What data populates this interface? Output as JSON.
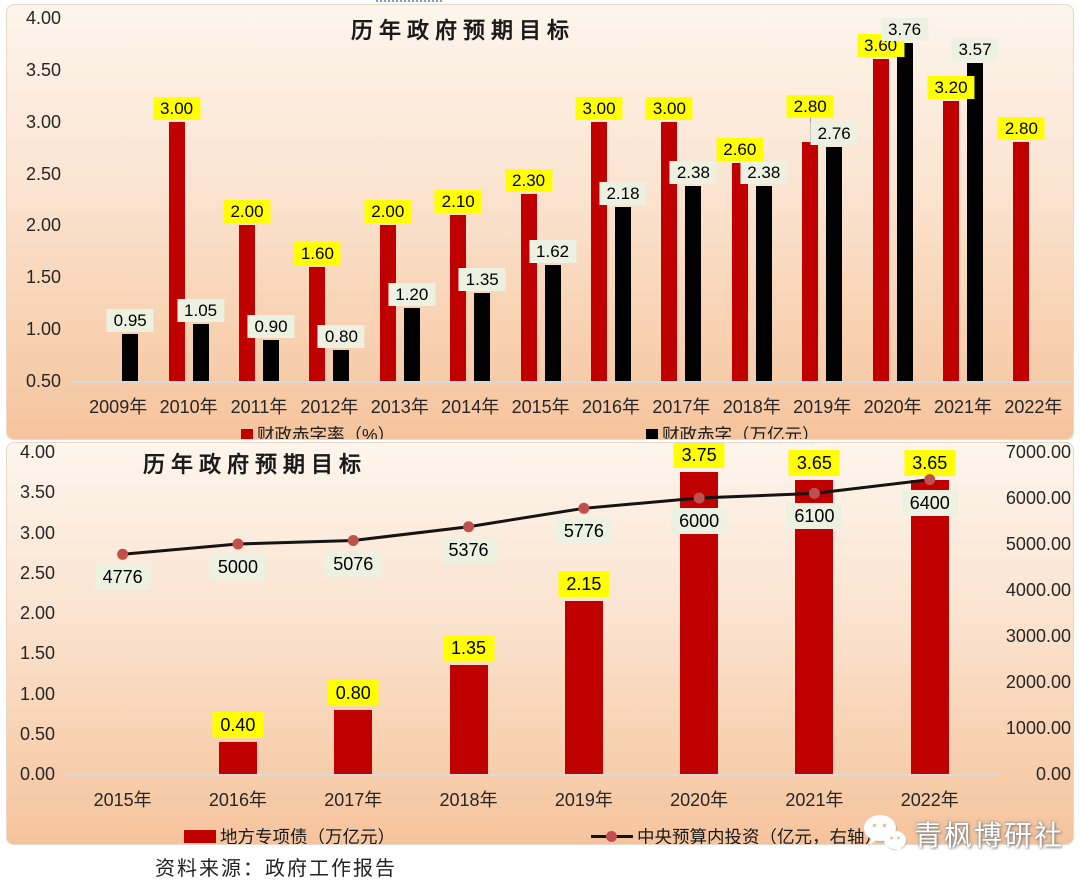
{
  "colors": {
    "bar_red": "#C00000",
    "bar_black": "#000000",
    "label_yellow": "#FFFF00",
    "label_cream": "#EDF1E1",
    "line": "#141414",
    "marker": "#C0504D",
    "panel_gradient_top": "#FDF5EC",
    "panel_gradient_bottom": "#F5C49D"
  },
  "source": {
    "text": "资料来源：政府工作报告"
  },
  "watermark": {
    "icon": "wechat-icon",
    "text": "青枫博研社"
  },
  "chart_data": [
    {
      "type": "bar",
      "title": "历年政府预期目标",
      "categories": [
        "2009年",
        "2010年",
        "2011年",
        "2012年",
        "2013年",
        "2014年",
        "2015年",
        "2016年",
        "2017年",
        "2018年",
        "2019年",
        "2020年",
        "2021年",
        "2022年"
      ],
      "series": [
        {
          "name": "财政赤字率（%）",
          "color": "#C00000",
          "label_bg": "#FFFF00",
          "values": [
            null,
            3.0,
            2.0,
            1.6,
            2.0,
            2.1,
            2.3,
            3.0,
            3.0,
            2.6,
            2.8,
            3.6,
            3.2,
            2.8
          ]
        },
        {
          "name": "财政赤字（万亿元）",
          "color": "#000000",
          "label_bg": "#EDF1E1",
          "values": [
            0.95,
            1.05,
            0.9,
            0.8,
            1.2,
            1.35,
            1.62,
            2.18,
            2.38,
            2.38,
            2.76,
            3.76,
            3.57,
            null
          ]
        }
      ],
      "y_axis": {
        "min": 0.5,
        "max": 4.0,
        "step": 0.5,
        "ticks": [
          "4.00",
          "3.50",
          "3.00",
          "2.50",
          "2.00",
          "1.50",
          "1.00",
          "0.50"
        ]
      },
      "grid": false,
      "legend_position": "bottom"
    },
    {
      "type": "bar+line",
      "title": "历年政府预期目标",
      "categories": [
        "2015年",
        "2016年",
        "2017年",
        "2018年",
        "2019年",
        "2020年",
        "2021年",
        "2022年"
      ],
      "bar_series": {
        "name": "地方专项债（万亿元）",
        "color": "#C00000",
        "label_bg": "#FFFF00",
        "axis": "left",
        "values": [
          null,
          0.4,
          0.8,
          1.35,
          2.15,
          3.75,
          3.65,
          3.65
        ]
      },
      "line_series": {
        "name": "中央预算内投资（亿元，右轴）",
        "color": "#141414",
        "marker_color": "#C0504D",
        "label_bg": "#EDF1E1",
        "axis": "right",
        "values": [
          4776,
          5000,
          5076,
          5376,
          5776,
          6000,
          6100,
          6400
        ]
      },
      "left_axis": {
        "min": 0.0,
        "max": 4.0,
        "step": 0.5,
        "ticks": [
          "4.00",
          "3.50",
          "3.00",
          "2.50",
          "2.00",
          "1.50",
          "1.00",
          "0.50",
          "0.00"
        ]
      },
      "right_axis": {
        "min": 0,
        "max": 7000,
        "step": 1000,
        "ticks": [
          "7000.00",
          "6000.00",
          "5000.00",
          "4000.00",
          "3000.00",
          "2000.00",
          "1000.00",
          "0.00"
        ]
      },
      "grid": false,
      "legend_position": "bottom"
    }
  ]
}
